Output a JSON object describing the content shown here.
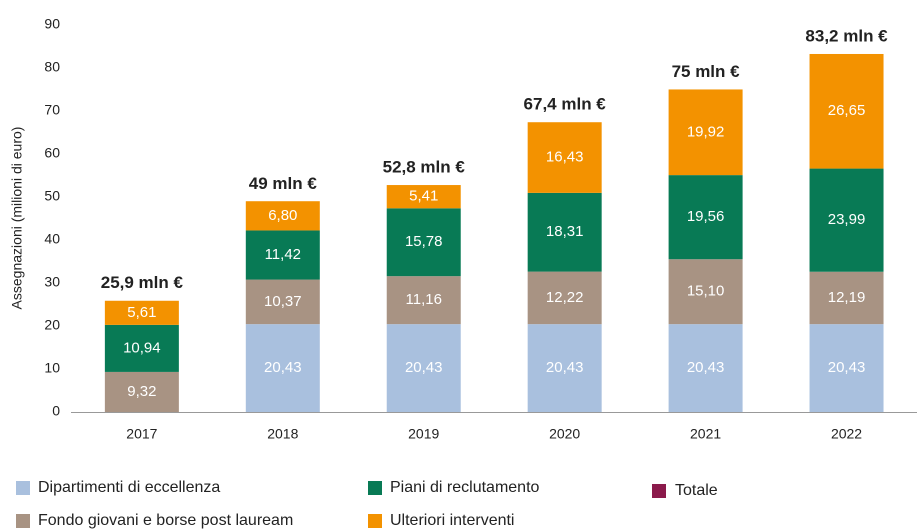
{
  "chart_data": {
    "type": "stacked-bar",
    "y_label": "Assegnazioni (milioni di euro)",
    "categories": [
      "2017",
      "2018",
      "2019",
      "2020",
      "2021",
      "2022"
    ],
    "ylim": [
      0,
      90
    ],
    "yticks": [
      0,
      10,
      20,
      30,
      40,
      50,
      60,
      70,
      80,
      90
    ],
    "series": [
      {
        "name": "Dipartimenti di eccellenza",
        "color": "#a9c0de",
        "values": [
          null,
          20.43,
          20.43,
          20.43,
          20.43,
          20.43
        ],
        "value_labels": [
          null,
          "20,43",
          "20,43",
          "20,43",
          "20,43",
          "20,43"
        ]
      },
      {
        "name": "Fondo giovani e borse post lauream",
        "color": "#a89383",
        "values": [
          9.32,
          10.37,
          11.16,
          12.22,
          15.1,
          12.19
        ],
        "value_labels": [
          "9,32",
          "10,37",
          "11,16",
          "12,22",
          "15,10",
          "12,19"
        ]
      },
      {
        "name": "Piani di reclutamento",
        "color": "#087a55",
        "values": [
          10.94,
          11.42,
          15.78,
          18.31,
          19.56,
          23.99
        ],
        "value_labels": [
          "10,94",
          "11,42",
          "15,78",
          "18,31",
          "19,56",
          "23,99"
        ]
      },
      {
        "name": "Ulteriori interventi",
        "color": "#f39200",
        "values": [
          5.61,
          6.8,
          5.41,
          16.43,
          19.92,
          26.65
        ],
        "value_labels": [
          "5,61",
          "6,80",
          "5,41",
          "16,43",
          "19,92",
          "26,65"
        ]
      }
    ],
    "total": {
      "name": "Totale",
      "color": "#8b1a4b",
      "values": [
        25.9,
        49,
        52.8,
        67.4,
        75,
        83.2
      ],
      "value_labels": [
        "25,9 mln €",
        "49 mln €",
        "52,8 mln €",
        "67,4 mln €",
        "75 mln €",
        "83,2 mln €"
      ]
    }
  }
}
